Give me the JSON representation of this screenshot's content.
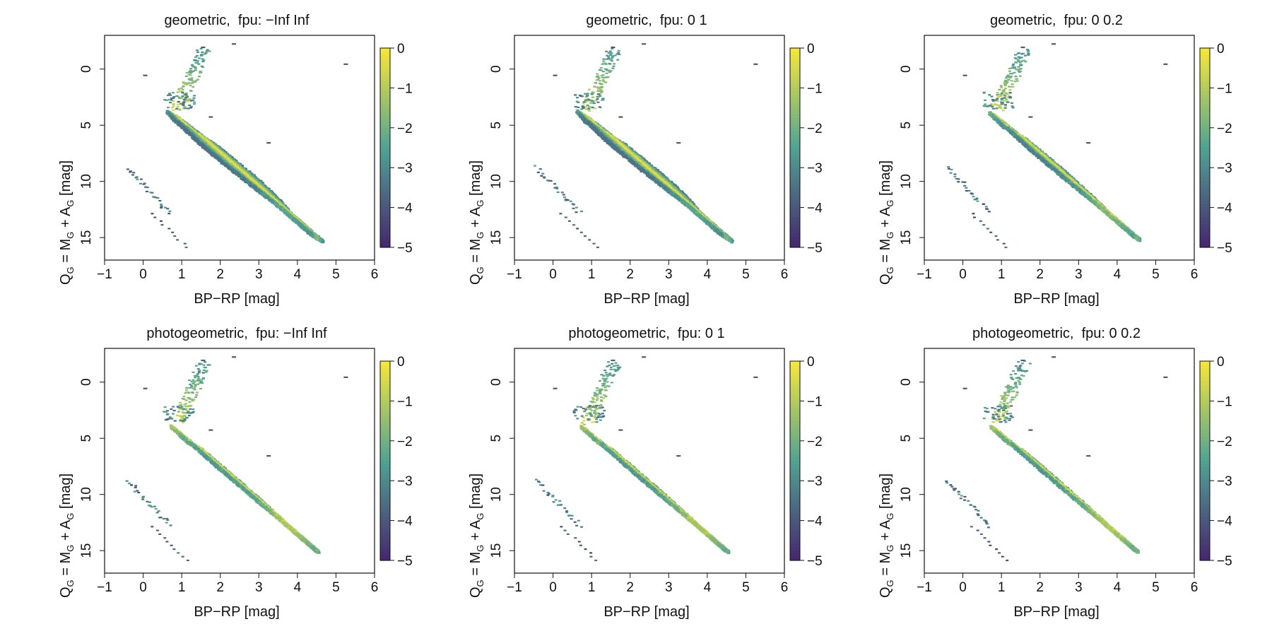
{
  "figure": {
    "colors": {
      "high": "#f5e63b",
      "mid": "#51a394",
      "low": "#46286e",
      "axis": "#111111"
    }
  },
  "chart_data": [
    {
      "type": "heatmap",
      "title": "geometric,  fpu: −Inf Inf",
      "xlabel": "BP−RP [mag]",
      "ylabel": [
        "Q",
        "G",
        " = M",
        "G",
        " + A",
        "G",
        " [mag]"
      ],
      "xlim": [
        -1,
        6
      ],
      "ylim": [
        17,
        -3
      ],
      "xticks": [
        "−1",
        "0",
        "1",
        "2",
        "3",
        "4",
        "5",
        "6"
      ],
      "yticks": [
        "0",
        "5",
        "10",
        "15"
      ],
      "colorbar": {
        "range": [
          -5,
          0
        ],
        "ticks": [
          "0",
          "−1",
          "−2",
          "−3",
          "−4",
          "−5"
        ]
      },
      "main_sequence_width": "wide"
    },
    {
      "type": "heatmap",
      "title": "geometric,  fpu: 0 1",
      "xlabel": "BP−RP [mag]",
      "ylabel": [
        "Q",
        "G",
        " = M",
        "G",
        " + A",
        "G",
        " [mag]"
      ],
      "xlim": [
        -1,
        6
      ],
      "ylim": [
        17,
        -3
      ],
      "xticks": [
        "−1",
        "0",
        "1",
        "2",
        "3",
        "4",
        "5",
        "6"
      ],
      "yticks": [
        "0",
        "5",
        "10",
        "15"
      ],
      "colorbar": {
        "range": [
          -5,
          0
        ],
        "ticks": [
          "0",
          "−1",
          "−2",
          "−3",
          "−4",
          "−5"
        ]
      },
      "main_sequence_width": "wide"
    },
    {
      "type": "heatmap",
      "title": "geometric,  fpu: 0 0.2",
      "xlabel": "BP−RP [mag]",
      "ylabel": [
        "Q",
        "G",
        " = M",
        "G",
        " + A",
        "G",
        " [mag]"
      ],
      "xlim": [
        -1,
        6
      ],
      "ylim": [
        17,
        -3
      ],
      "xticks": [
        "−1",
        "0",
        "1",
        "2",
        "3",
        "4",
        "5",
        "6"
      ],
      "yticks": [
        "0",
        "5",
        "10",
        "15"
      ],
      "colorbar": {
        "range": [
          -5,
          0
        ],
        "ticks": [
          "0",
          "−1",
          "−2",
          "−3",
          "−4",
          "−5"
        ]
      },
      "main_sequence_width": "medium"
    },
    {
      "type": "heatmap",
      "title": "photogeometric,  fpu: −Inf Inf",
      "xlabel": "BP−RP [mag]",
      "ylabel": [
        "Q",
        "G",
        " = M",
        "G",
        " + A",
        "G",
        " [mag]"
      ],
      "xlim": [
        -1,
        6
      ],
      "ylim": [
        17,
        -3
      ],
      "xticks": [
        "−1",
        "0",
        "1",
        "2",
        "3",
        "4",
        "5",
        "6"
      ],
      "yticks": [
        "0",
        "5",
        "10",
        "15"
      ],
      "colorbar": {
        "range": [
          -5,
          0
        ],
        "ticks": [
          "0",
          "−1",
          "−2",
          "−3",
          "−4",
          "−5"
        ]
      },
      "main_sequence_width": "narrow"
    },
    {
      "type": "heatmap",
      "title": "photogeometric,  fpu: 0 1",
      "xlabel": "BP−RP [mag]",
      "ylabel": [
        "Q",
        "G",
        " = M",
        "G",
        " + A",
        "G",
        " [mag]"
      ],
      "xlim": [
        -1,
        6
      ],
      "ylim": [
        17,
        -3
      ],
      "xticks": [
        "−1",
        "0",
        "1",
        "2",
        "3",
        "4",
        "5",
        "6"
      ],
      "yticks": [
        "0",
        "5",
        "10",
        "15"
      ],
      "colorbar": {
        "range": [
          -5,
          0
        ],
        "ticks": [
          "0",
          "−1",
          "−2",
          "−3",
          "−4",
          "−5"
        ]
      },
      "main_sequence_width": "narrow"
    },
    {
      "type": "heatmap",
      "title": "photogeometric,  fpu: 0 0.2",
      "xlabel": "BP−RP [mag]",
      "ylabel": [
        "Q",
        "G",
        " = M",
        "G",
        " + A",
        "G",
        " [mag]"
      ],
      "xlim": [
        -1,
        6
      ],
      "ylim": [
        17,
        -3
      ],
      "xticks": [
        "−1",
        "0",
        "1",
        "2",
        "3",
        "4",
        "5",
        "6"
      ],
      "yticks": [
        "0",
        "5",
        "10",
        "15"
      ],
      "colorbar": {
        "range": [
          -5,
          0
        ],
        "ticks": [
          "0",
          "−1",
          "−2",
          "−3",
          "−4",
          "−5"
        ]
      },
      "main_sequence_width": "narrow"
    }
  ]
}
